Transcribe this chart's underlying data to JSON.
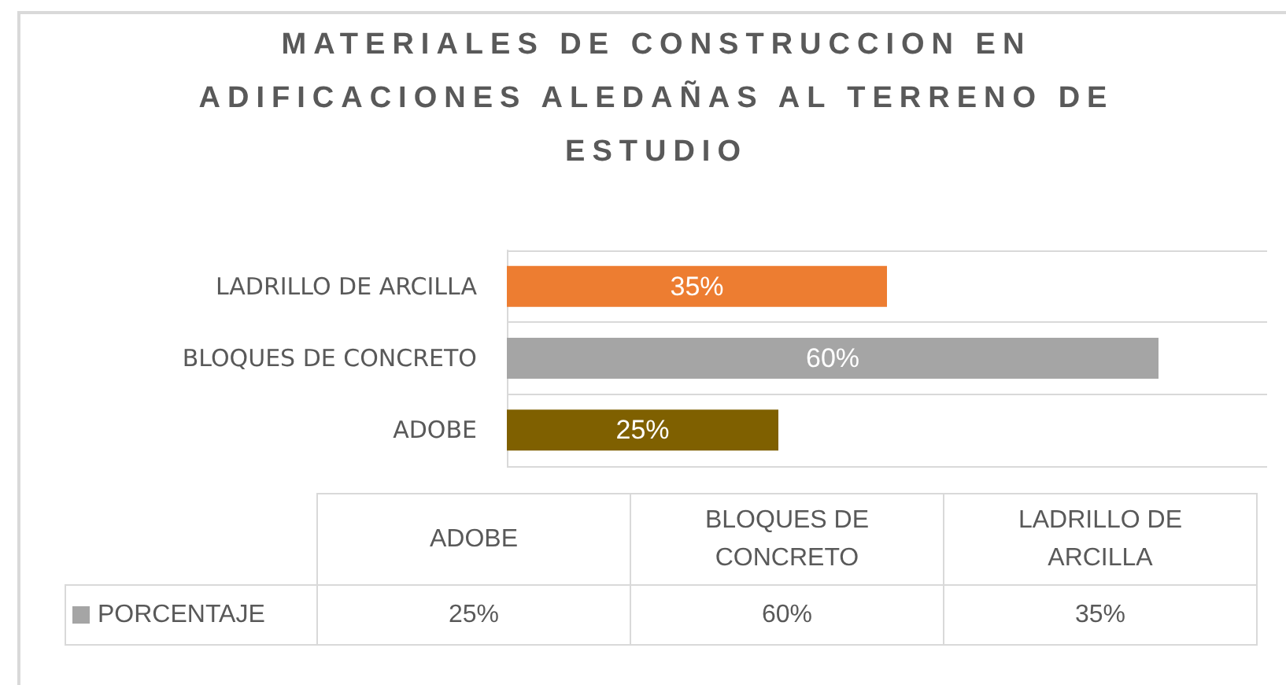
{
  "chart_data": {
    "type": "bar",
    "orientation": "horizontal",
    "title": "MATERIALES DE CONSTRUCCION EN ADIFICACIONES ALEDAÑAS AL TERRENO DE ESTUDIO",
    "categories": [
      "LADRILLO DE ARCILLA",
      "BLOQUES DE CONCRETO",
      "ADOBE"
    ],
    "series": [
      {
        "name": "PORCENTAJE",
        "color": "#a5a5a5",
        "colors": [
          "#ed7d31",
          "#a5a5a5",
          "#7f6000"
        ],
        "values": [
          35,
          60,
          25
        ],
        "value_labels": [
          "35%",
          "60%",
          "25%"
        ]
      }
    ],
    "xlim": [
      0,
      70
    ],
    "grid": "y",
    "legend": "bottom",
    "tick_labels": "y"
  }
}
